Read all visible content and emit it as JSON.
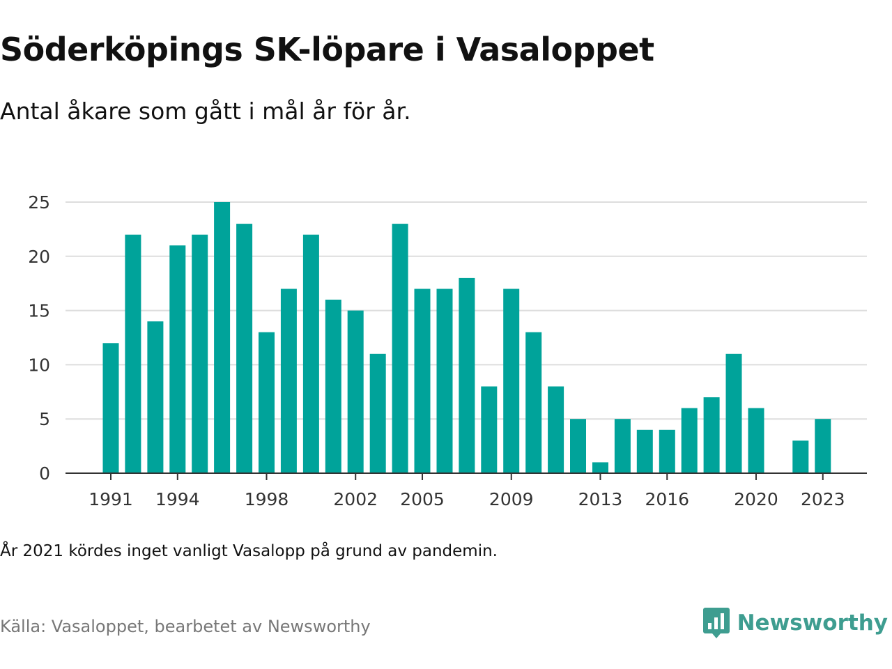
{
  "title": "Söderköpings SK-löpare i Vasaloppet",
  "subtitle": "Antal åkare som gått i mål år för år.",
  "note": "År 2021 kördes inget vanligt Vasalopp på grund av pandemin.",
  "source": "Källa: Vasaloppet, bearbetet av Newsworthy",
  "brand": {
    "name": "Newsworthy",
    "icon": "newsworthy-logo-icon",
    "color": "#3e9d90"
  },
  "colors": {
    "bar": "#00a39a",
    "grid": "#dddddd",
    "axis": "#333333",
    "tick_text": "#333333"
  },
  "chart_data": {
    "type": "bar",
    "x": [
      1991,
      1992,
      1993,
      1994,
      1995,
      1996,
      1997,
      1998,
      1999,
      2000,
      2001,
      2002,
      2003,
      2004,
      2005,
      2006,
      2007,
      2008,
      2009,
      2010,
      2011,
      2012,
      2013,
      2014,
      2015,
      2016,
      2017,
      2018,
      2019,
      2020,
      2021,
      2022,
      2023
    ],
    "values": [
      12,
      22,
      14,
      21,
      22,
      25,
      23,
      13,
      17,
      22,
      16,
      15,
      11,
      23,
      17,
      17,
      18,
      8,
      17,
      13,
      8,
      5,
      1,
      5,
      4,
      4,
      6,
      7,
      11,
      6,
      null,
      3,
      5
    ],
    "x_tick_labels": [
      1991,
      1994,
      1998,
      2002,
      2005,
      2009,
      2013,
      2016,
      2020,
      2023
    ],
    "y_ticks": [
      0,
      5,
      10,
      15,
      20,
      25
    ],
    "ylim": [
      0,
      25
    ],
    "grid": true,
    "legend": "none"
  }
}
